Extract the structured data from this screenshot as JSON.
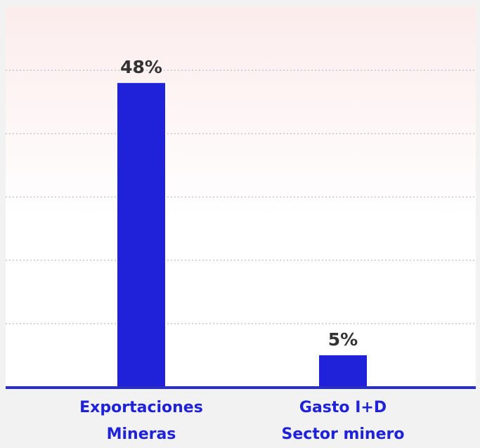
{
  "chart_data": {
    "type": "bar",
    "categories": [
      {
        "line1": "Exportaciones",
        "line2": "Mineras"
      },
      {
        "line1": "Gasto I+D",
        "line2": "Sector minero"
      }
    ],
    "values": [
      48,
      5
    ],
    "value_labels": [
      "48%",
      "5%"
    ],
    "unit": "%",
    "ylim": [
      0,
      60
    ],
    "gridlines": [
      10,
      20,
      30,
      40,
      50
    ],
    "grid": true,
    "legend": "none",
    "title": "",
    "xlabel": "",
    "ylabel": ""
  },
  "colors": {
    "bar": "#1f22d8",
    "axis": "#2b2fc0",
    "grid": "#c6c6c6",
    "plot_background_top": "#fcecec",
    "plot_background_bottom": "#ffffff",
    "page_background": "#f2f2f2",
    "value_label": "#333333",
    "category_label": "#1f22d8"
  }
}
